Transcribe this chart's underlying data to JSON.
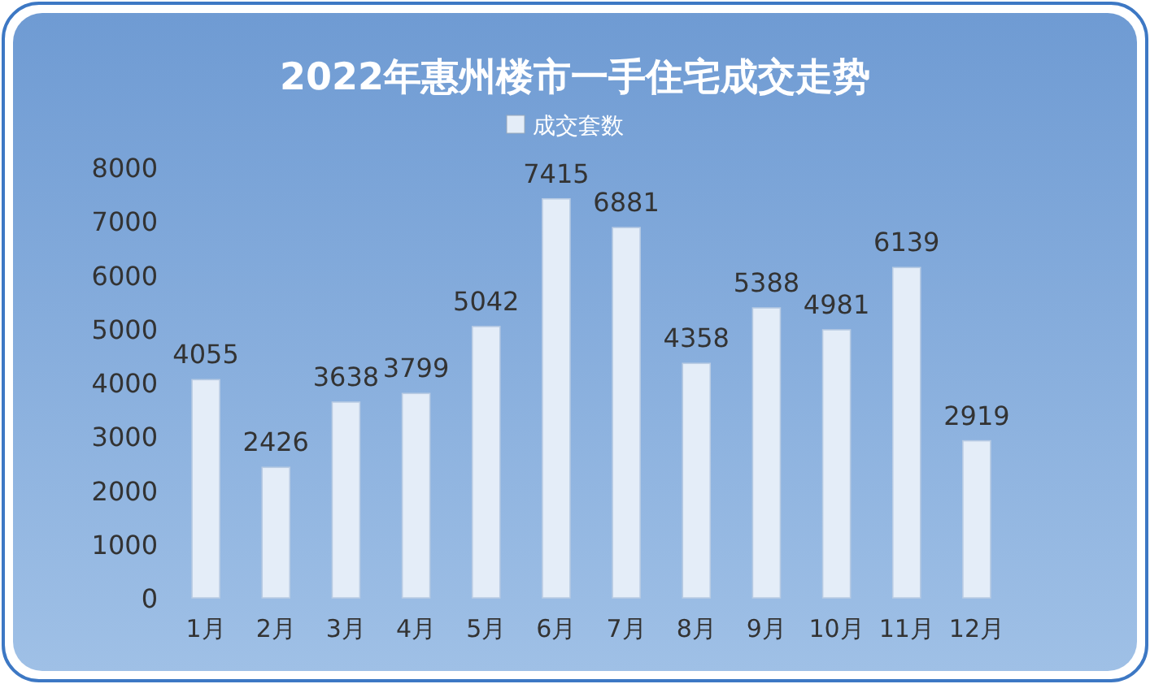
{
  "chart_data": {
    "type": "bar",
    "title": "2022年惠州楼市一手住宅成交走势",
    "categories": [
      "1月",
      "2月",
      "3月",
      "4月",
      "5月",
      "6月",
      "7月",
      "8月",
      "9月",
      "10月",
      "11月",
      "12月"
    ],
    "series": [
      {
        "name": "成交套数",
        "color": "#e4edf8",
        "values": [
          4055,
          2426,
          3638,
          3799,
          5042,
          7415,
          6881,
          4358,
          5388,
          4981,
          6139,
          2919
        ]
      }
    ],
    "ylim": [
      0,
      8000
    ],
    "yticks": [
      0,
      1000,
      2000,
      3000,
      4000,
      5000,
      6000,
      7000,
      8000
    ],
    "data_labels": true,
    "legend": "top",
    "grid": false
  }
}
